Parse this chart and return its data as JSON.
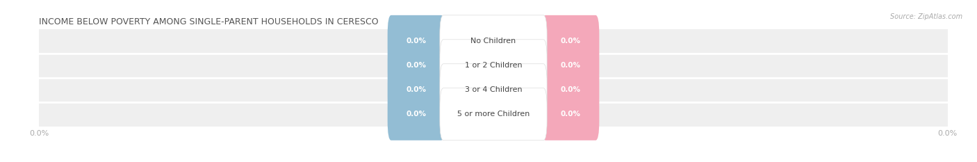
{
  "title": "INCOME BELOW POVERTY AMONG SINGLE-PARENT HOUSEHOLDS IN CERESCO",
  "source": "Source: ZipAtlas.com",
  "categories": [
    "No Children",
    "1 or 2 Children",
    "3 or 4 Children",
    "5 or more Children"
  ],
  "father_values": [
    0.0,
    0.0,
    0.0,
    0.0
  ],
  "mother_values": [
    0.0,
    0.0,
    0.0,
    0.0
  ],
  "father_color": "#93BDD4",
  "mother_color": "#F4A8BA",
  "row_bg_color": "#EFEFEF",
  "row_sep_color": "#FFFFFF",
  "category_text_color": "#444444",
  "title_color": "#555555",
  "axis_label_color": "#AAAAAA",
  "figsize": [
    14.06,
    2.33
  ],
  "dpi": 100
}
